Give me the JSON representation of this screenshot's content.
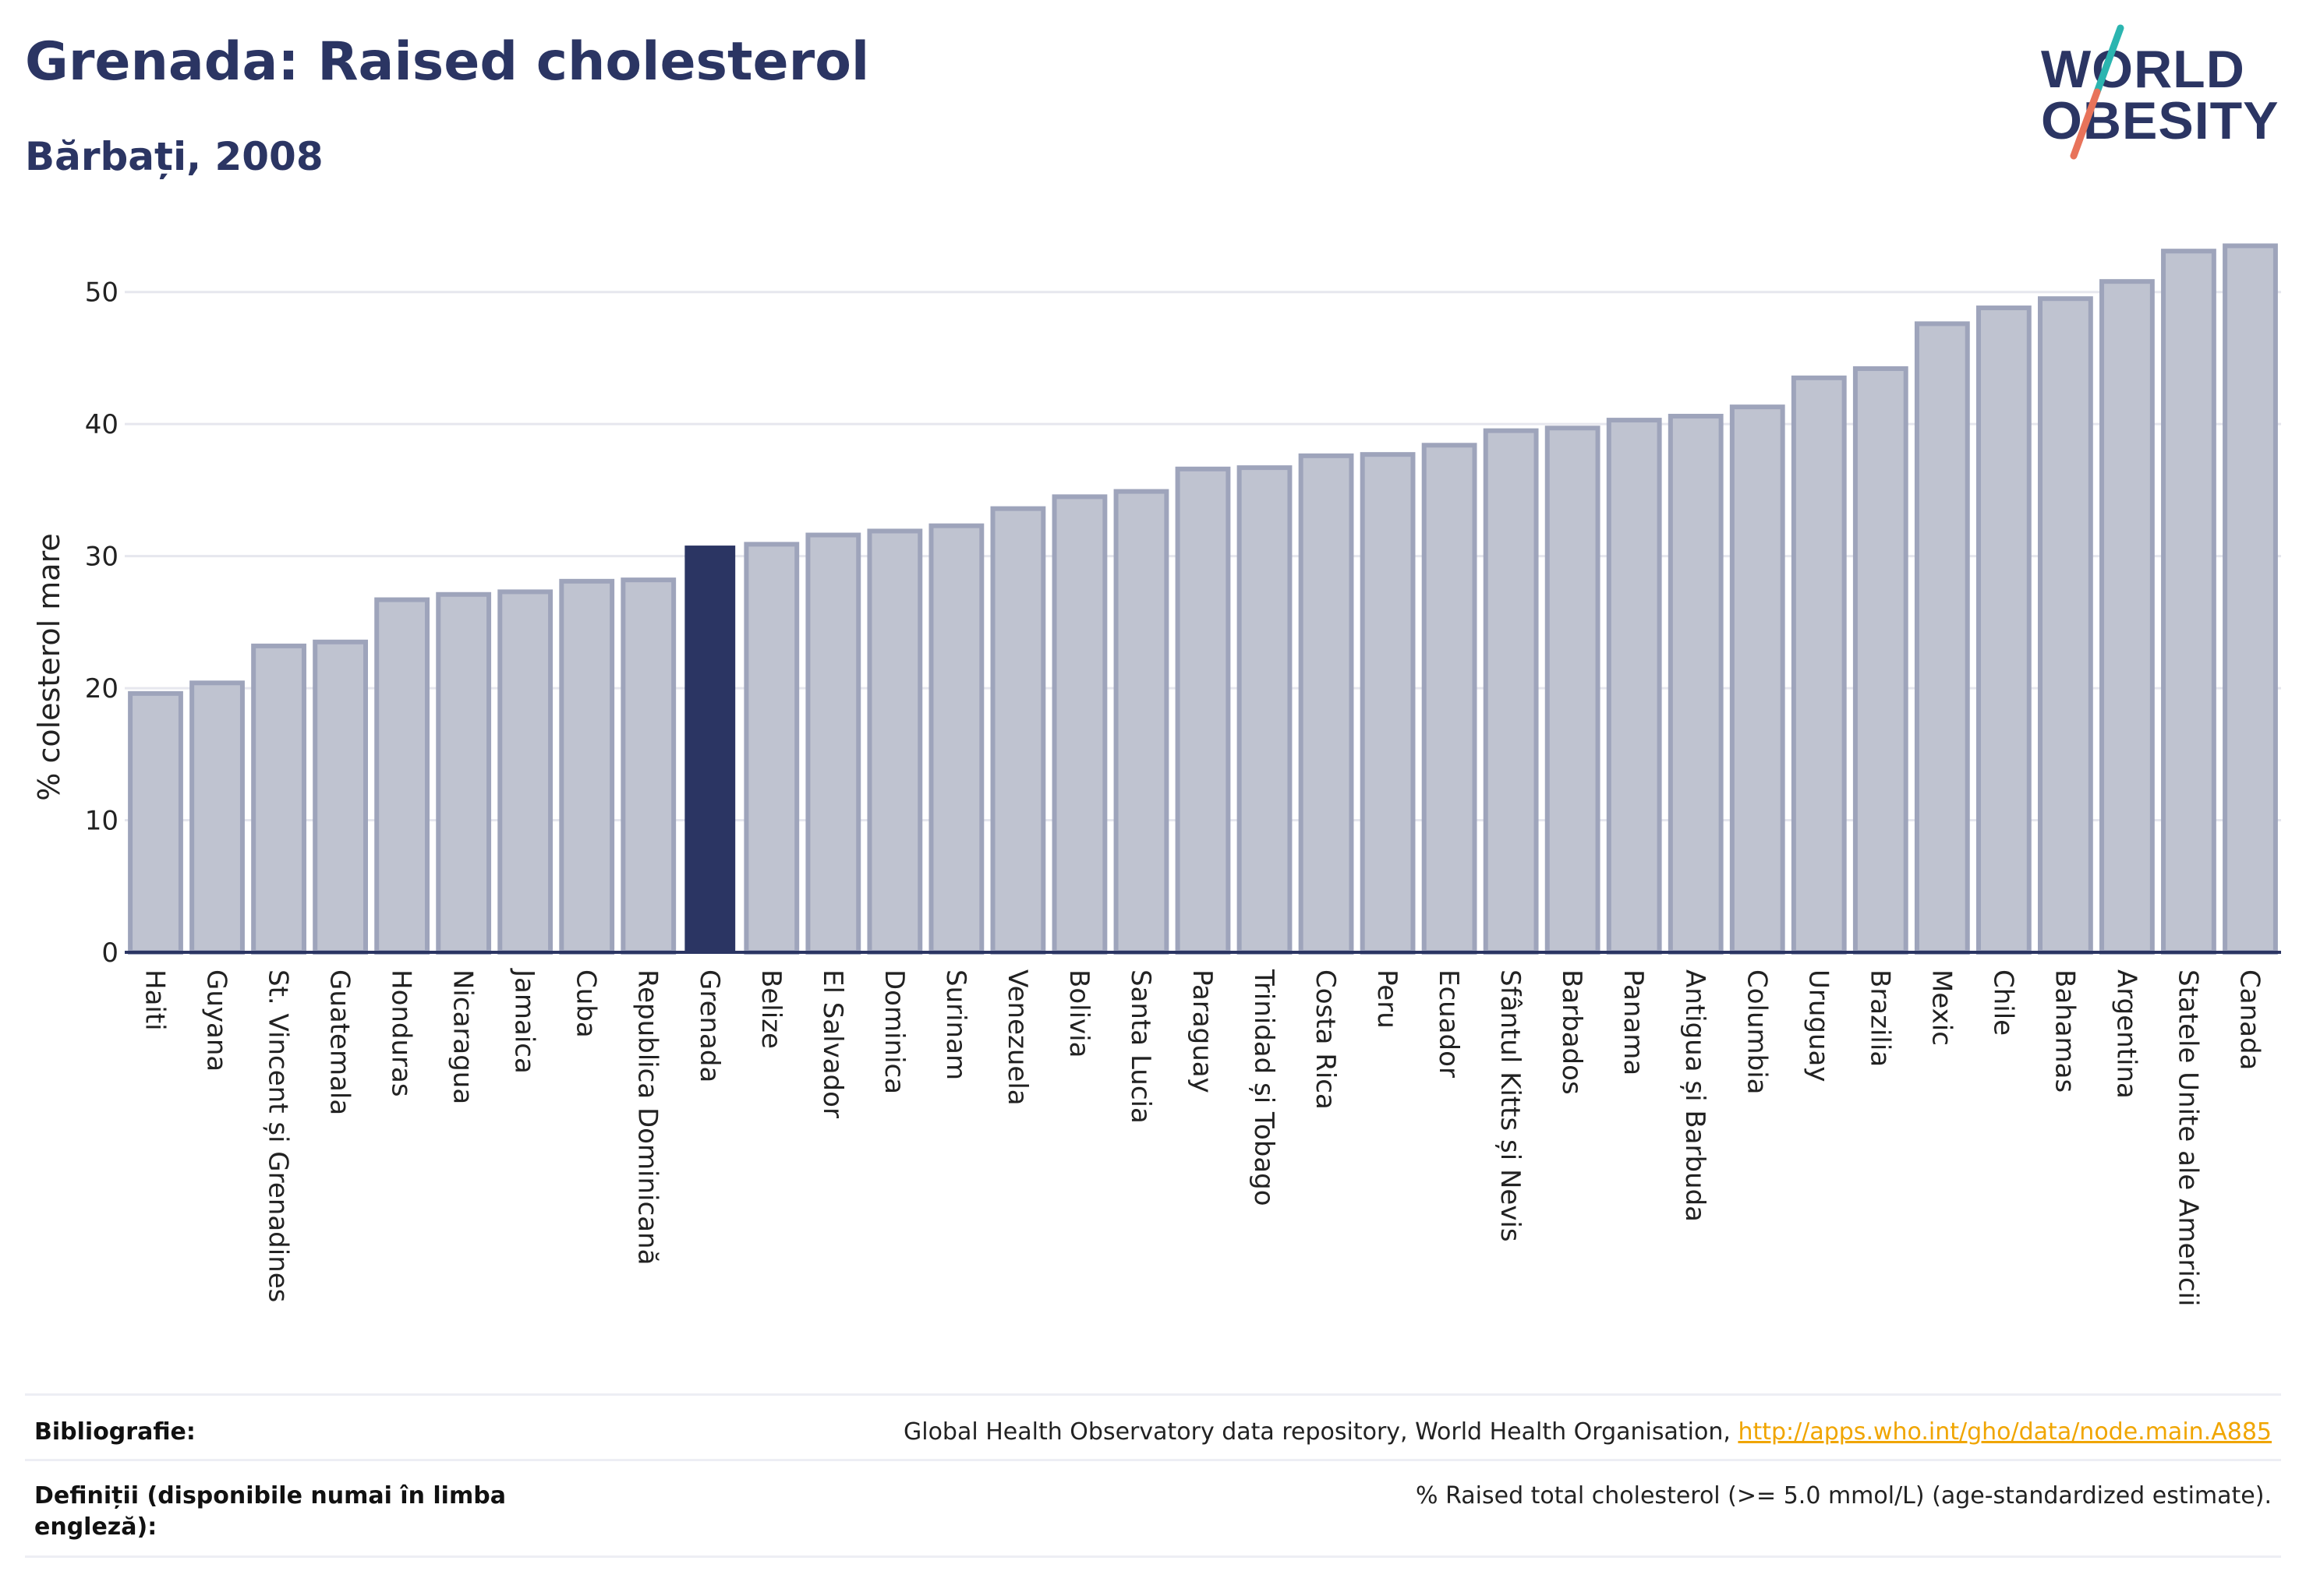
{
  "header": {
    "title": "Grenada: Raised cholesterol",
    "subtitle": "Bărbați, 2008"
  },
  "logo": {
    "line1": "WORLD",
    "line2": "OBESITY",
    "colors": {
      "text": "#2b3563",
      "slash_teal": "#2bb5b0",
      "slash_coral": "#e8735a"
    }
  },
  "chart_data": {
    "type": "bar",
    "title": "",
    "xlabel": "",
    "ylabel": "% colesterol mare",
    "ylim": [
      0,
      55
    ],
    "yticks": [
      0,
      10,
      20,
      30,
      40,
      50
    ],
    "grid": true,
    "highlight": "Grenada",
    "colors": {
      "bar": "#bfc3d0",
      "bar_border": "#9ea4bb",
      "highlight": "#2b3563",
      "grid": "#e6e7ee",
      "axis": "#2b3563"
    },
    "categories": [
      "Haiti",
      "Guyana",
      "St. Vincent și Grenadines",
      "Guatemala",
      "Honduras",
      "Nicaragua",
      "Jamaica",
      "Cuba",
      "Republica Dominicană",
      "Grenada",
      "Belize",
      "El Salvador",
      "Dominica",
      "Surinam",
      "Venezuela",
      "Bolivia",
      "Santa Lucia",
      "Paraguay",
      "Trinidad și Tobago",
      "Costa Rica",
      "Peru",
      "Ecuador",
      "Sfântul Kitts și Nevis",
      "Barbados",
      "Panama",
      "Antigua și Barbuda",
      "Columbia",
      "Uruguay",
      "Brazilia",
      "Mexic",
      "Chile",
      "Bahamas",
      "Argentina",
      "Statele Unite ale Americii",
      "Canada"
    ],
    "values": [
      19.6,
      20.4,
      23.2,
      23.5,
      26.7,
      27.1,
      27.3,
      28.1,
      28.2,
      30.8,
      30.9,
      31.6,
      31.9,
      32.3,
      33.6,
      34.5,
      34.9,
      36.6,
      36.7,
      37.6,
      37.7,
      38.4,
      39.5,
      39.7,
      40.3,
      40.6,
      41.3,
      43.5,
      44.2,
      47.6,
      48.8,
      49.5,
      50.8,
      53.1,
      53.5
    ]
  },
  "footer": {
    "bibliography_label": "Bibliografie:",
    "bibliography_text": "Global Health Observatory data repository, World Health Organisation,",
    "bibliography_link": "http://apps.who.int/gho/data/node.main.A885",
    "definitions_label": "Definiții (disponibile numai în limba engleză):",
    "definitions_text": "% Raised total cholesterol (>= 5.0 mmol/L) (age-standardized estimate)."
  }
}
